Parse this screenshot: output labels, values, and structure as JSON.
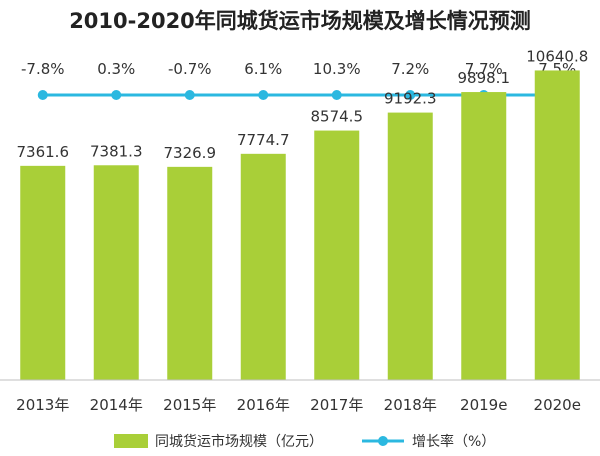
{
  "chart_data": {
    "type": "bar",
    "title": "2010-2020年同城货运市场规模及增长情况预测",
    "categories": [
      "2013年",
      "2014年",
      "2015年",
      "2016年",
      "2017年",
      "2018年",
      "2019e",
      "2020e"
    ],
    "series": [
      {
        "name": "同城货运市场规模（亿元）",
        "type": "bar",
        "values": [
          7361.6,
          7381.3,
          7326.9,
          7774.7,
          8574.5,
          9192.3,
          9898.1,
          10640.8
        ],
        "labels": [
          "7361.6",
          "7381.3",
          "7326.9",
          "7774.7",
          "8574.5",
          "9192.3",
          "9898.1",
          "10640.8"
        ]
      },
      {
        "name": "增长率（%）",
        "type": "line",
        "values": [
          -7.8,
          0.3,
          -0.7,
          6.1,
          10.3,
          7.2,
          7.7,
          7.5
        ],
        "labels": [
          "-7.8%",
          "0.3%",
          "-0.7%",
          "6.1%",
          "10.3%",
          "7.2%",
          "7.7%",
          "7.5%"
        ]
      }
    ],
    "ylim": [
      0,
      11000
    ],
    "line_display": "flat-band",
    "grid": false,
    "legend_position": "bottom",
    "colors": {
      "bar": "#a9cf38",
      "line": "#2bb8e0",
      "title": "#222222",
      "label": "#333333"
    }
  }
}
